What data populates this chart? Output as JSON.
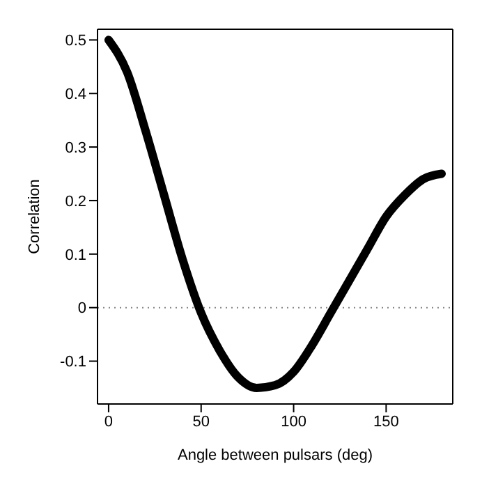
{
  "chart_data": {
    "type": "line",
    "xlabel": "Angle between pulsars (deg)",
    "ylabel": "Correlation",
    "x": [
      0,
      10,
      20,
      30,
      40,
      50,
      60,
      70,
      80,
      90,
      100,
      110,
      120,
      130,
      140,
      150,
      160,
      170,
      180
    ],
    "series": [
      {
        "color": "#000000",
        "values": [
          0.5,
          0.44,
          0.33,
          0.21,
          0.09,
          -0.01,
          -0.08,
          -0.13,
          -0.15,
          -0.145,
          -0.12,
          -0.07,
          -0.01,
          0.05,
          0.11,
          0.17,
          0.21,
          0.24,
          0.25
        ]
      }
    ],
    "xlim": [
      -6,
      186
    ],
    "xticks": [
      0,
      50,
      100,
      150
    ],
    "ylim": [
      -0.18,
      0.52
    ],
    "yticks": [
      -0.1,
      0,
      0.1,
      0.2,
      0.3,
      0.4,
      0.5
    ],
    "ref_lines": [
      {
        "axis": "y",
        "value": 0,
        "color": "#888888",
        "line_style": "dotted"
      }
    ],
    "grid": false,
    "legend": false,
    "marker": "none",
    "line_style": "solid"
  }
}
